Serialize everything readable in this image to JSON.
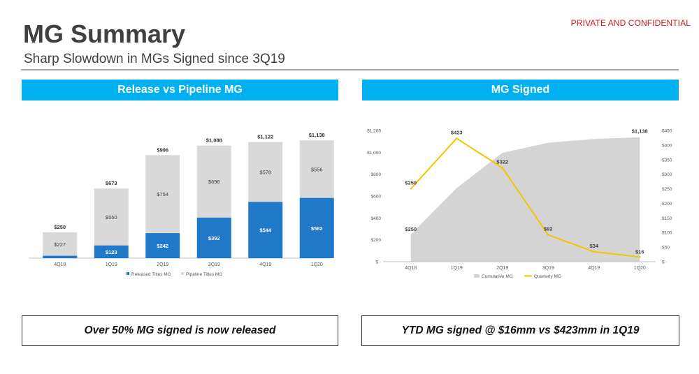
{
  "header": {
    "confidential": "PRIVATE AND CONFIDENTIAL",
    "title": "MG Summary",
    "subtitle": "Sharp Slowdown in MGs Signed since 3Q19"
  },
  "colors": {
    "accent": "#00b0f0",
    "released": "#1f78c8",
    "pipeline": "#d9d9d9",
    "cumulative": "#d4d4d4",
    "quarterly": "#f2c500",
    "confidential": "#d8141e"
  },
  "panels": {
    "left_title": "Release vs Pipeline MG",
    "right_title": "MG Signed",
    "left_callout": "Over 50% MG signed is now released",
    "right_callout": "YTD MG signed @ $16mm vs $423mm in 1Q19"
  },
  "chart_data": [
    {
      "type": "bar",
      "stacked": true,
      "categories": [
        "4Q18",
        "1Q19",
        "2Q19",
        "3Q19",
        "4Q19",
        "1Q20"
      ],
      "series": [
        {
          "name": "Released Titles MG",
          "values": [
            23,
            123,
            242,
            392,
            544,
            582
          ],
          "labels": [
            "",
            "$123",
            "$242",
            "$392",
            "$544",
            "$582"
          ]
        },
        {
          "name": "Pipeline Titles MG",
          "values": [
            227,
            550,
            754,
            696,
            578,
            556
          ],
          "labels": [
            "$227",
            "$550",
            "$754",
            "$696",
            "$578",
            "$556"
          ]
        }
      ],
      "totals": [
        "$250",
        "$673",
        "$996",
        "$1,088",
        "$1,122",
        "$1,138"
      ],
      "total_values": [
        250,
        673,
        996,
        1088,
        1122,
        1138
      ],
      "ylim": [
        0,
        1200
      ],
      "legend_position": "bottom"
    },
    {
      "type": "area",
      "categories": [
        "4Q18",
        "1Q19",
        "2Q19",
        "3Q19",
        "4Q19",
        "1Q20"
      ],
      "series": [
        {
          "name": "Cumulative MG",
          "type": "area",
          "axis": "left",
          "values": [
            250,
            673,
            996,
            1088,
            1122,
            1138
          ],
          "labels": [
            "$250",
            "",
            "",
            "",
            "",
            "$1,138"
          ]
        },
        {
          "name": "Quarterly MG",
          "type": "line",
          "axis": "right",
          "values": [
            250,
            423,
            322,
            92,
            34,
            16
          ],
          "labels": [
            "$250",
            "$423",
            "$322",
            "$92",
            "$34",
            "$16"
          ]
        }
      ],
      "left_ticks": [
        "$ -",
        "$200",
        "$400",
        "$600",
        "$800",
        "$1,000",
        "$1,200"
      ],
      "right_ticks": [
        "$ -",
        "$50",
        "$100",
        "$150",
        "$200",
        "$250",
        "$300",
        "$350",
        "$400",
        "$450"
      ],
      "ylim_left": [
        0,
        1200
      ],
      "ylim_right": [
        0,
        450
      ],
      "legend_position": "bottom"
    }
  ]
}
